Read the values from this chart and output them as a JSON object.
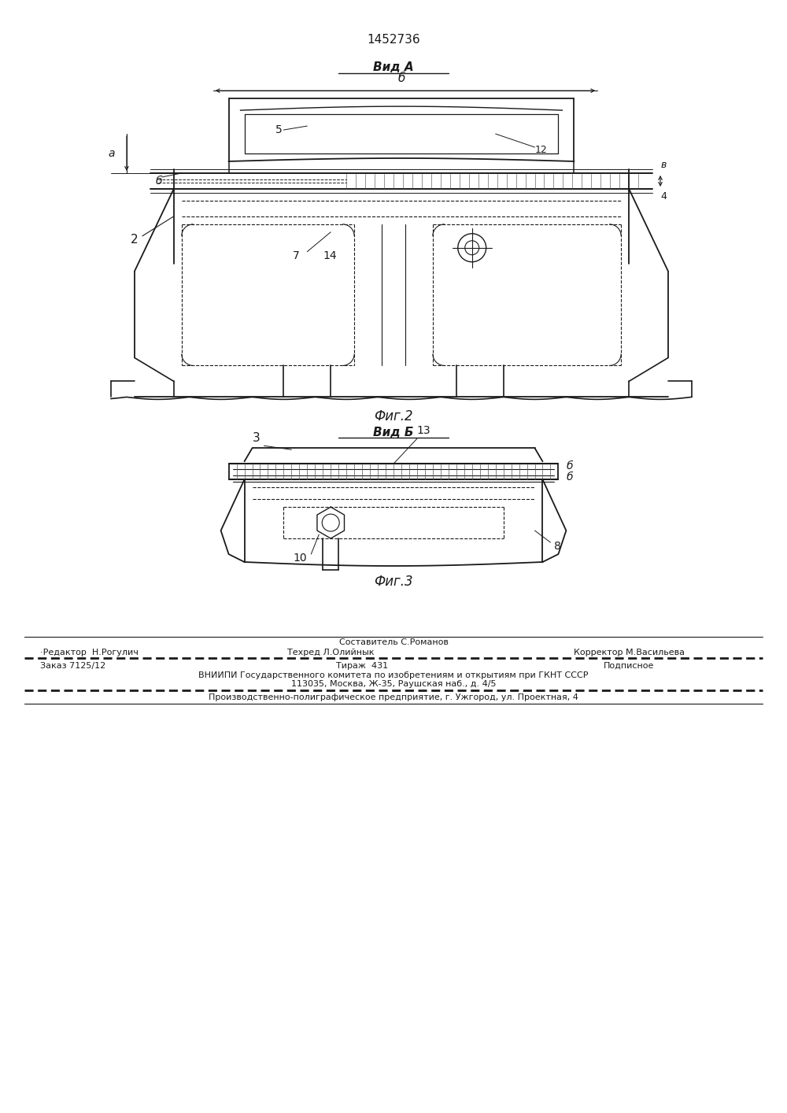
{
  "patent_number": "1452736",
  "view_a_label": "Вид А",
  "view_b_label": "Вид Б",
  "fig2_label": "Фиг.2",
  "fig3_label": "Фиг.3",
  "footer_line1": "Составитель С.Романов",
  "footer_editor": "·Редактор  Н.Рогулич",
  "footer_tech": "Техред Л.Олийнык",
  "footer_corrector": "Корректор М.Васильева",
  "footer_order": "Заказ 7125/12",
  "footer_tirazh": "Тираж  431",
  "footer_podpisnoe": "Подписное",
  "footer_vniiipi": "ВНИИПИ Государственного комитета по изобретениям и открытиям при ГКНТ СССР",
  "footer_address": "113035, Москва, Ж-35, Раушская наб., д. 4/5",
  "footer_factory": "Производственно-полиграфическое предприятие, г. Ужгород, ул. Проектная, 4",
  "bg_color": "#ffffff",
  "line_color": "#1a1a1a",
  "text_color": "#1a1a1a"
}
